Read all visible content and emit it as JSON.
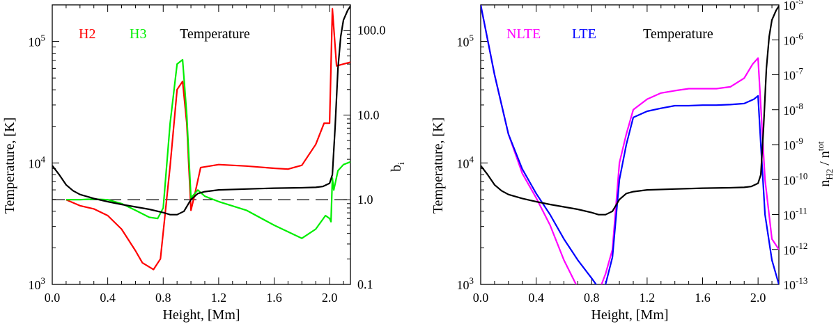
{
  "chart_data": [
    {
      "type": "line",
      "panel": "left",
      "xlabel": "Height, [Mm]",
      "ylabel": "Temperature, [K]",
      "y2label": "b",
      "y2label_sub": "i",
      "xlim": [
        0.0,
        2.15
      ],
      "ylim": [
        1000,
        200000
      ],
      "y2lim": [
        0.1,
        200
      ],
      "yscale": "log",
      "y2scale": "log",
      "x_ticks": [
        "0.0",
        "0.4",
        "0.8",
        "1.2",
        "1.6",
        "2.0"
      ],
      "x_tick_values": [
        0.0,
        0.4,
        0.8,
        1.2,
        1.6,
        2.0
      ],
      "y_ticks": [
        {
          "base": "10",
          "exp": "3",
          "value": 1000
        },
        {
          "base": "10",
          "exp": "4",
          "value": 10000
        },
        {
          "base": "10",
          "exp": "5",
          "value": 100000
        }
      ],
      "y2_ticks": [
        {
          "label": "0.1",
          "value": 0.1
        },
        {
          "label": "1.0",
          "value": 1.0
        },
        {
          "label": "10.0",
          "value": 10.0
        },
        {
          "label": "100.0",
          "value": 100.0
        }
      ],
      "legend": [
        {
          "label": "H2",
          "color": "#ff0000"
        },
        {
          "label": "H3",
          "color": "#00ee00"
        },
        {
          "label": "Temperature",
          "color": "#000000"
        }
      ],
      "reference_line": {
        "axis": "y2",
        "value": 1.0,
        "style": "dashed"
      },
      "series": [
        {
          "name": "Temperature",
          "axis": "y",
          "color": "#000000",
          "x": [
            0.0,
            0.05,
            0.1,
            0.15,
            0.2,
            0.3,
            0.4,
            0.5,
            0.6,
            0.7,
            0.8,
            0.85,
            0.9,
            0.95,
            1.0,
            1.05,
            1.1,
            1.2,
            1.4,
            1.6,
            1.8,
            1.9,
            1.95,
            2.0,
            2.02,
            2.04,
            2.06,
            2.08,
            2.1,
            2.13,
            2.15
          ],
          "y": [
            9500,
            8000,
            6600,
            5900,
            5500,
            5100,
            4800,
            4550,
            4350,
            4150,
            3900,
            3750,
            3750,
            4000,
            5000,
            5600,
            5800,
            6000,
            6100,
            6200,
            6250,
            6300,
            6400,
            6800,
            8000,
            20000,
            60000,
            110000,
            150000,
            180000,
            195000
          ]
        },
        {
          "name": "H2",
          "axis": "y2",
          "color": "#ff0000",
          "x": [
            0.1,
            0.2,
            0.3,
            0.4,
            0.5,
            0.6,
            0.65,
            0.73,
            0.78,
            0.85,
            0.9,
            0.94,
            0.97,
            1.0,
            1.03,
            1.07,
            1.2,
            1.4,
            1.6,
            1.7,
            1.8,
            1.9,
            1.96,
            2.0,
            2.02,
            2.05,
            2.1,
            2.15
          ],
          "y": [
            1.0,
            0.85,
            0.78,
            0.65,
            0.45,
            0.25,
            0.18,
            0.15,
            0.2,
            2.5,
            20,
            25,
            8,
            0.75,
            1.2,
            2.4,
            2.6,
            2.5,
            2.35,
            2.3,
            2.55,
            4.5,
            8,
            8,
            180,
            38,
            40,
            42
          ]
        },
        {
          "name": "H3",
          "axis": "y2",
          "color": "#00ee00",
          "x": [
            0.1,
            0.2,
            0.3,
            0.4,
            0.5,
            0.6,
            0.7,
            0.76,
            0.8,
            0.85,
            0.9,
            0.94,
            0.97,
            1.0,
            1.05,
            1.1,
            1.2,
            1.4,
            1.6,
            1.8,
            1.9,
            1.97,
            2.0,
            2.01,
            2.02,
            2.03,
            2.06,
            2.1,
            2.15
          ],
          "y": [
            1.0,
            1.0,
            1.02,
            1.0,
            0.9,
            0.75,
            0.62,
            0.6,
            0.8,
            8,
            40,
            45,
            10,
            1.05,
            1.3,
            1.1,
            0.95,
            0.75,
            0.5,
            0.35,
            0.45,
            0.65,
            0.6,
            0.55,
            1.8,
            1.3,
            2.2,
            2.6,
            2.8
          ]
        }
      ]
    },
    {
      "type": "line",
      "panel": "right",
      "xlabel": "Height, [Mm]",
      "ylabel": "Temperature, [K]",
      "y2label": "n",
      "y2label_parts": {
        "sub1": "H2",
        "mid": " / n",
        "sup": "tot"
      },
      "xlim": [
        0.0,
        2.15
      ],
      "ylim": [
        1000,
        200000
      ],
      "y2lim": [
        1e-13,
        1e-05
      ],
      "yscale": "log",
      "y2scale": "log",
      "x_ticks": [
        "0.0",
        "0.4",
        "0.8",
        "1.2",
        "1.6",
        "2.0"
      ],
      "x_tick_values": [
        0.0,
        0.4,
        0.8,
        1.2,
        1.6,
        2.0
      ],
      "y_ticks": [
        {
          "base": "10",
          "exp": "3",
          "value": 1000
        },
        {
          "base": "10",
          "exp": "4",
          "value": 10000
        },
        {
          "base": "10",
          "exp": "5",
          "value": 100000
        }
      ],
      "y2_ticks": [
        {
          "base": "10",
          "exp": "-13",
          "value": 1e-13
        },
        {
          "base": "10",
          "exp": "-12",
          "value": 1e-12
        },
        {
          "base": "10",
          "exp": "-11",
          "value": 1e-11
        },
        {
          "base": "10",
          "exp": "-10",
          "value": 1e-10
        },
        {
          "base": "10",
          "exp": "-9",
          "value": 1e-09
        },
        {
          "base": "10",
          "exp": "-8",
          "value": 1e-08
        },
        {
          "base": "10",
          "exp": "-7",
          "value": 1e-07
        },
        {
          "base": "10",
          "exp": "-6",
          "value": 1e-06
        },
        {
          "base": "10",
          "exp": "-5",
          "value": 1e-05
        }
      ],
      "legend": [
        {
          "label": "NLTE",
          "color": "#ff00ff"
        },
        {
          "label": "LTE",
          "color": "#0000ff"
        },
        {
          "label": "Temperature",
          "color": "#000000"
        }
      ],
      "series": [
        {
          "name": "Temperature",
          "axis": "y",
          "color": "#000000",
          "x": [
            0.0,
            0.05,
            0.1,
            0.15,
            0.2,
            0.3,
            0.4,
            0.5,
            0.6,
            0.7,
            0.8,
            0.85,
            0.9,
            0.95,
            1.0,
            1.05,
            1.1,
            1.2,
            1.4,
            1.6,
            1.8,
            1.9,
            1.95,
            2.0,
            2.02,
            2.04,
            2.06,
            2.08,
            2.1,
            2.13,
            2.15
          ],
          "y": [
            9500,
            8000,
            6600,
            5900,
            5500,
            5100,
            4800,
            4550,
            4350,
            4150,
            3900,
            3750,
            3750,
            4000,
            5000,
            5600,
            5800,
            6000,
            6100,
            6200,
            6250,
            6300,
            6400,
            6800,
            8000,
            20000,
            60000,
            110000,
            150000,
            180000,
            195000
          ]
        },
        {
          "name": "NLTE",
          "axis": "y2",
          "color": "#ff00ff",
          "x": [
            0.0,
            0.1,
            0.2,
            0.3,
            0.4,
            0.5,
            0.6,
            0.7,
            0.78,
            0.85,
            0.9,
            0.95,
            1.0,
            1.05,
            1.1,
            1.2,
            1.3,
            1.4,
            1.5,
            1.6,
            1.7,
            1.8,
            1.9,
            1.96,
            2.0,
            2.05,
            2.1,
            2.15
          ],
          "y": [
            1e-05,
            1e-07,
            2e-09,
            1.5e-10,
            3e-11,
            5e-12,
            5e-13,
            8e-14,
            3.5e-14,
            6e-14,
            2e-13,
            1e-12,
            3e-10,
            2e-09,
            1e-08,
            2e-08,
            3e-08,
            3.5e-08,
            4e-08,
            4e-08,
            4e-08,
            4.5e-08,
            8e-08,
            2e-07,
            3e-07,
            1e-10,
            2e-12,
            1e-12
          ]
        },
        {
          "name": "LTE",
          "axis": "y2",
          "color": "#0000ff",
          "x": [
            0.0,
            0.1,
            0.2,
            0.3,
            0.4,
            0.5,
            0.6,
            0.7,
            0.8,
            0.85,
            0.9,
            0.95,
            1.0,
            1.05,
            1.1,
            1.2,
            1.3,
            1.4,
            1.5,
            1.6,
            1.7,
            1.8,
            1.9,
            1.97,
            2.0,
            2.02,
            2.05,
            2.1,
            2.15
          ],
          "y": [
            1e-05,
            1e-07,
            2e-09,
            2e-10,
            4e-11,
            1e-11,
            2e-12,
            5e-13,
            1.5e-13,
            8e-14,
            1e-13,
            6e-13,
            1e-10,
            1e-09,
            6e-09,
            9e-09,
            1.1e-08,
            1.3e-08,
            1.3e-08,
            1.35e-08,
            1.35e-08,
            1.4e-08,
            1.5e-08,
            2e-08,
            2.5e-08,
            1e-09,
            1e-11,
            5e-13,
            1e-13
          ]
        }
      ]
    }
  ]
}
